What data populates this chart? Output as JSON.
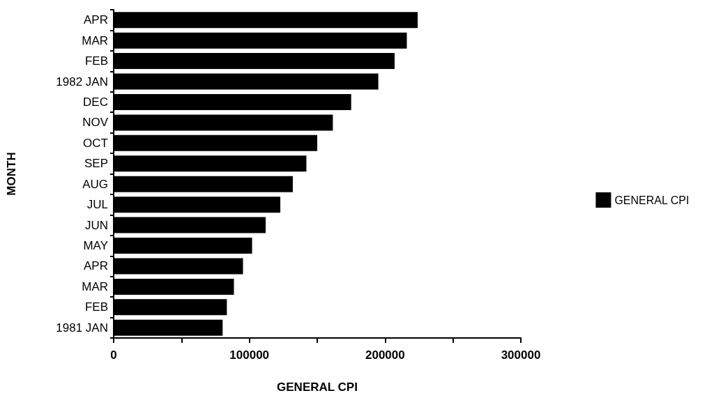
{
  "chart_data": {
    "type": "bar",
    "orientation": "horizontal",
    "xlabel": "GENERAL CPI",
    "ylabel": "MONTH",
    "categories": [
      "APR",
      "MAR",
      "FEB",
      "1982 JAN",
      "DEC",
      "NOV",
      "OCT",
      "SEP",
      "AUG",
      "JUL",
      "JUN",
      "MAY",
      "APR",
      "MAR",
      "FEB",
      "1981 JAN"
    ],
    "series": [
      {
        "name": "GENERAL CPI",
        "color": "#000000",
        "values": [
          224000,
          216000,
          207000,
          195000,
          175000,
          161500,
          150000,
          142000,
          132000,
          122800,
          112000,
          102000,
          95300,
          88600,
          83400,
          80300
        ]
      }
    ],
    "xlim": [
      0,
      300000
    ],
    "xticks": [
      0,
      {
        "value": 50000,
        "label": null
      },
      100000,
      {
        "value": 150000,
        "label": null
      },
      200000,
      {
        "value": 250000,
        "label": null
      },
      300000
    ],
    "grid": false,
    "legend": "right"
  }
}
